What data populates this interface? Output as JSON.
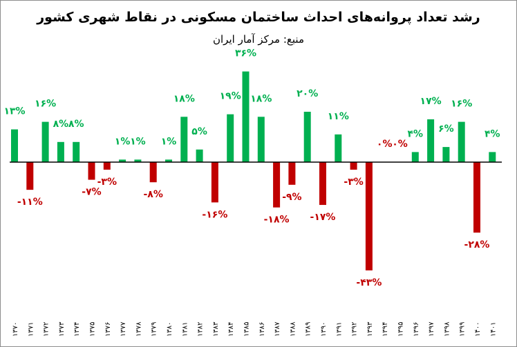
{
  "chart_data": {
    "type": "bar",
    "title": "رشد تعداد پروانه‌های احداث ساختمان مسکونی در نقاط شهری کشور",
    "subtitle": "منبع: مرکز آمار ایران",
    "xlabel": "",
    "ylabel": "",
    "categories": [
      "۱۳۷۰",
      "۱۳۷۱",
      "۱۳۷۲",
      "۱۳۷۳",
      "۱۳۷۴",
      "۱۳۷۵",
      "۱۳۷۶",
      "۱۳۷۷",
      "۱۳۷۸",
      "۱۳۷۹",
      "۱۳۸۰",
      "۱۳۸۱",
      "۱۳۸۲",
      "۱۳۸۳",
      "۱۳۸۴",
      "۱۳۸۵",
      "۱۳۸۶",
      "۱۳۸۷",
      "۱۳۸۸",
      "۱۳۸۹",
      "۱۳۹۰",
      "۱۳۹۱",
      "۱۳۹۲",
      "۱۳۹۳",
      "۱۳۹۴",
      "۱۳۹۵",
      "۱۳۹۶",
      "۱۳۹۷",
      "۱۳۹۸",
      "۱۳۹۹",
      "۱۴۰۰",
      "۱۴۰۱"
    ],
    "values": [
      13,
      -11,
      16,
      8,
      8,
      -7,
      -3,
      1,
      1,
      -8,
      1,
      18,
      5,
      -16,
      19,
      36,
      18,
      -18,
      -9,
      20,
      -17,
      11,
      -3,
      -43,
      0,
      0,
      4,
      17,
      6,
      16,
      -28,
      4
    ],
    "data_labels": [
      "۱۳%",
      "-۱۱%",
      "۱۶%",
      "۸%",
      "۸%",
      "-۷%",
      "-۳%",
      "۱%",
      "۱%",
      "-۸%",
      "۱%",
      "۱۸%",
      "۵%",
      "-۱۶%",
      "۱۹%",
      "۳۶%",
      "۱۸%",
      "-۱۸%",
      "-۹%",
      "۲۰%",
      "-۱۷%",
      "۱۱%",
      "-۳%",
      "-۴۳%",
      "۰%",
      "۰%",
      "۴%",
      "۱۷%",
      "۶%",
      "۱۶%",
      "-۲۸%",
      "۴%"
    ],
    "ylim": [
      -45,
      38
    ],
    "grid": false,
    "legend": "none",
    "colors": {
      "positive": "#00b050",
      "negative": "#c00000",
      "axis": "#000000"
    }
  }
}
